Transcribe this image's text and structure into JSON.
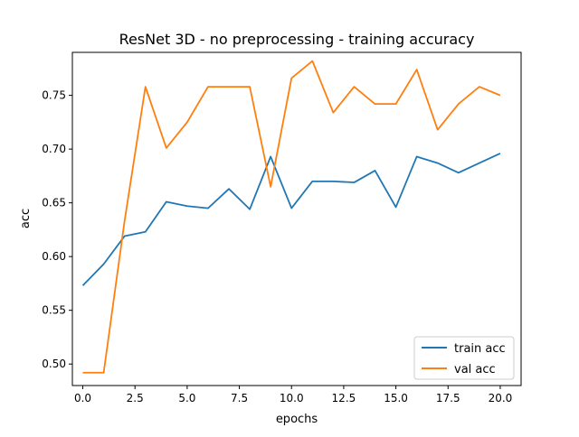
{
  "chart_data": {
    "type": "line",
    "title": "ResNet 3D - no preprocessing - training accuracy",
    "xlabel": "epochs",
    "ylabel": "acc",
    "xlim": [
      -0.5,
      21.0
    ],
    "ylim": [
      0.48,
      0.79
    ],
    "x_ticks": [
      0.0,
      2.5,
      5.0,
      7.5,
      10.0,
      12.5,
      15.0,
      17.5,
      20.0
    ],
    "x_tick_labels": [
      "0.0",
      "2.5",
      "5.0",
      "7.5",
      "10.0",
      "12.5",
      "15.0",
      "17.5",
      "20.0"
    ],
    "y_ticks": [
      0.5,
      0.55,
      0.6,
      0.65,
      0.7,
      0.75
    ],
    "y_tick_labels": [
      "0.50",
      "0.55",
      "0.60",
      "0.65",
      "0.70",
      "0.75"
    ],
    "grid": false,
    "legend_position": "lower-right",
    "x": [
      0,
      1,
      2,
      3,
      4,
      5,
      6,
      7,
      8,
      9,
      10,
      11,
      12,
      13,
      14,
      15,
      16,
      17,
      18,
      19,
      20
    ],
    "series": [
      {
        "name": "train acc",
        "color": "#1f77b4",
        "values": [
          0.573,
          0.593,
          0.619,
          0.623,
          0.651,
          0.647,
          0.645,
          0.663,
          0.644,
          0.693,
          0.645,
          0.67,
          0.67,
          0.669,
          0.68,
          0.646,
          0.693,
          0.687,
          0.678,
          0.687,
          0.696
        ]
      },
      {
        "name": "val acc",
        "color": "#ff7f0e",
        "values": [
          0.492,
          0.492,
          0.633,
          0.758,
          0.701,
          0.725,
          0.758,
          0.758,
          0.758,
          0.665,
          0.766,
          0.782,
          0.734,
          0.758,
          0.742,
          0.742,
          0.774,
          0.718,
          0.742,
          0.758,
          0.75
        ]
      }
    ]
  }
}
